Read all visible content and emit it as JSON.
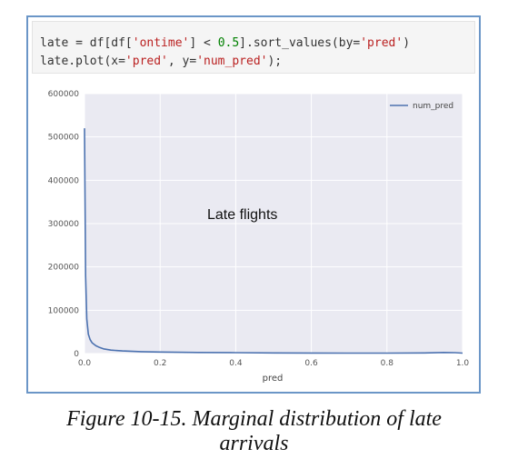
{
  "code": {
    "line1": {
      "a": "late = df[df[",
      "s1": "'ontime'",
      "b": "] < ",
      "n1": "0.5",
      "c": "].sort_values(by=",
      "s2": "'pred'",
      "d": ")"
    },
    "line2": {
      "a": "late.plot(x=",
      "s1": "'pred'",
      "b": ", y=",
      "s2": "'num_pred'",
      "c": ");"
    }
  },
  "caption": {
    "line1": "Figure 10-15. Marginal distribution of late",
    "line2": "arrivals"
  },
  "colors": {
    "line": "#4c72b0",
    "plot_bg": "#eaeaf2",
    "grid": "#ffffff",
    "frame": "#6b96c7"
  },
  "chart_data": {
    "type": "line",
    "title": "",
    "annotation": "Late flights",
    "xlabel": "pred",
    "ylabel": "",
    "xlim": [
      0.0,
      1.0
    ],
    "ylim": [
      0,
      600000
    ],
    "xticks": [
      "0.0",
      "0.2",
      "0.4",
      "0.6",
      "0.8",
      "1.0"
    ],
    "yticks": [
      "0",
      "100000",
      "200000",
      "300000",
      "400000",
      "500000",
      "600000"
    ],
    "grid": true,
    "legend": {
      "position": "top-right",
      "entries": [
        "num_pred"
      ]
    },
    "series": [
      {
        "name": "num_pred",
        "x": [
          0.0,
          0.003,
          0.006,
          0.01,
          0.015,
          0.02,
          0.03,
          0.04,
          0.05,
          0.07,
          0.1,
          0.15,
          0.2,
          0.3,
          0.4,
          0.5,
          0.6,
          0.7,
          0.8,
          0.9,
          0.95,
          0.98,
          1.0
        ],
        "y": [
          520000,
          180000,
          80000,
          45000,
          32000,
          25000,
          18000,
          14000,
          11000,
          8000,
          6000,
          4500,
          3500,
          2500,
          2000,
          1500,
          1200,
          1000,
          1000,
          1500,
          2500,
          2000,
          1000
        ]
      }
    ]
  }
}
